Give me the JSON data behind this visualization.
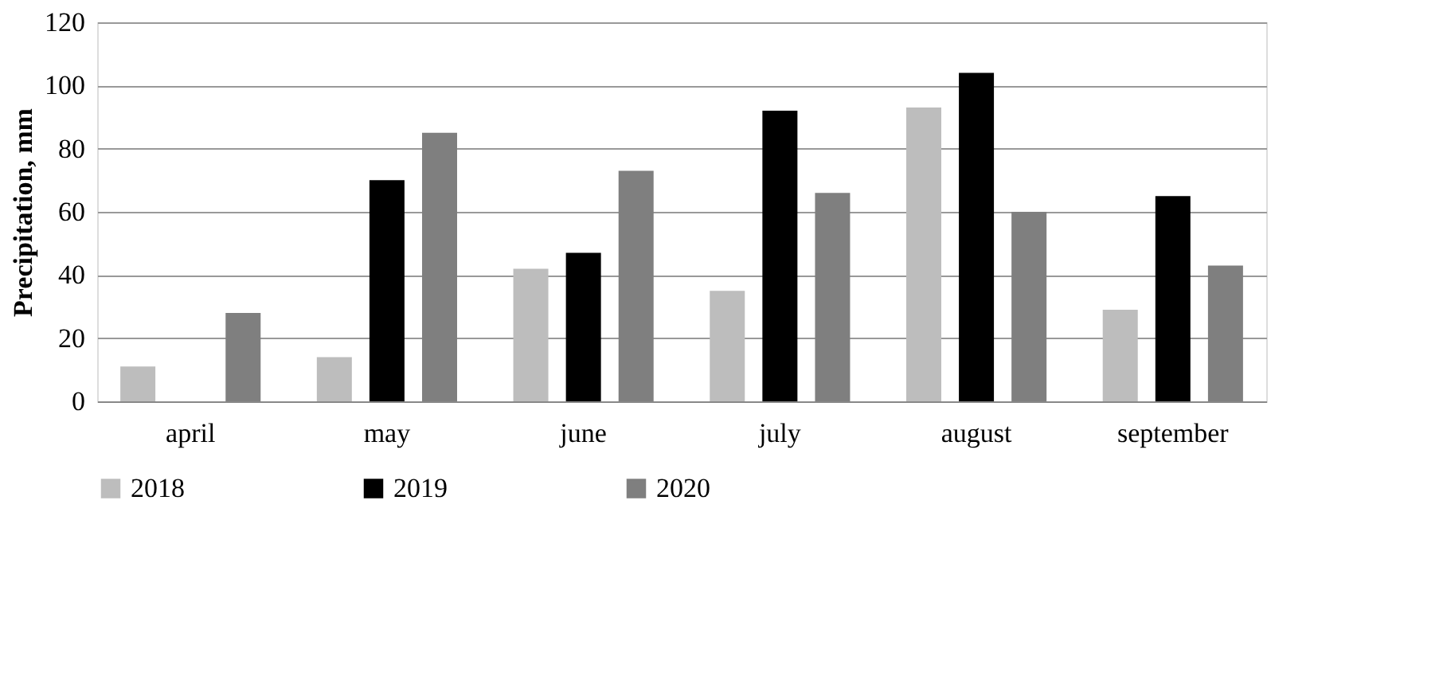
{
  "chart_data": {
    "type": "bar",
    "ylabel": "Precipitation, mm",
    "categories": [
      "april",
      "may",
      "june",
      "july",
      "august",
      "september"
    ],
    "series": [
      {
        "name": "2018",
        "color": "#bdbdbd",
        "values": [
          11,
          14,
          42,
          35,
          93,
          29
        ]
      },
      {
        "name": "2019",
        "color": "#000000",
        "values": [
          null,
          70,
          47,
          92,
          104,
          65
        ]
      },
      {
        "name": "2020",
        "color": "#7f7f7f",
        "values": [
          28,
          85,
          73,
          66,
          60,
          43
        ]
      }
    ],
    "ylim": [
      0,
      120
    ],
    "yticks": [
      0,
      20,
      40,
      60,
      80,
      100,
      120
    ],
    "grid": "y",
    "legend": "bottom"
  }
}
